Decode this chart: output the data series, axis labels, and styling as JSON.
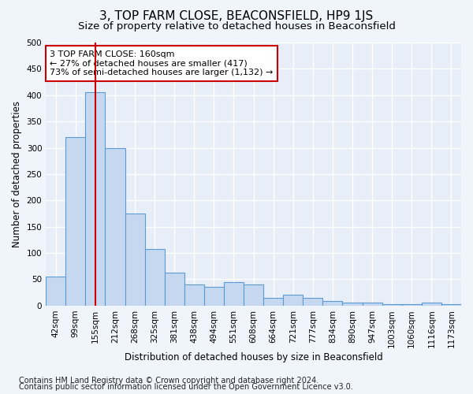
{
  "title": "3, TOP FARM CLOSE, BEACONSFIELD, HP9 1JS",
  "subtitle": "Size of property relative to detached houses in Beaconsfield",
  "xlabel": "Distribution of detached houses by size in Beaconsfield",
  "ylabel": "Number of detached properties",
  "footer_line1": "Contains HM Land Registry data © Crown copyright and database right 2024.",
  "footer_line2": "Contains public sector information licensed under the Open Government Licence v3.0.",
  "categories": [
    "42sqm",
    "99sqm",
    "155sqm",
    "212sqm",
    "268sqm",
    "325sqm",
    "381sqm",
    "438sqm",
    "494sqm",
    "551sqm",
    "608sqm",
    "664sqm",
    "721sqm",
    "777sqm",
    "834sqm",
    "890sqm",
    "947sqm",
    "1003sqm",
    "1060sqm",
    "1116sqm",
    "1173sqm"
  ],
  "bar_heights": [
    55,
    320,
    405,
    300,
    175,
    108,
    63,
    40,
    35,
    45,
    40,
    15,
    20,
    15,
    8,
    5,
    5,
    3,
    2,
    5,
    3
  ],
  "bar_color": "#c5d8f0",
  "bar_edge_color": "#5b9bd5",
  "vline_x_index": 2,
  "vline_color": "#cc0000",
  "annotation_text": "3 TOP FARM CLOSE: 160sqm\n← 27% of detached houses are smaller (417)\n73% of semi-detached houses are larger (1,132) →",
  "annotation_box_facecolor": "#ffffff",
  "annotation_box_edgecolor": "#cc0000",
  "ylim": [
    0,
    500
  ],
  "yticks": [
    0,
    50,
    100,
    150,
    200,
    250,
    300,
    350,
    400,
    450,
    500
  ],
  "background_color": "#f0f4fb",
  "plot_background_color": "#e8eef8",
  "grid_color": "#ffffff",
  "title_fontsize": 11,
  "subtitle_fontsize": 9.5,
  "axis_label_fontsize": 8.5,
  "tick_fontsize": 7.5,
  "annotation_fontsize": 8,
  "footer_fontsize": 7
}
